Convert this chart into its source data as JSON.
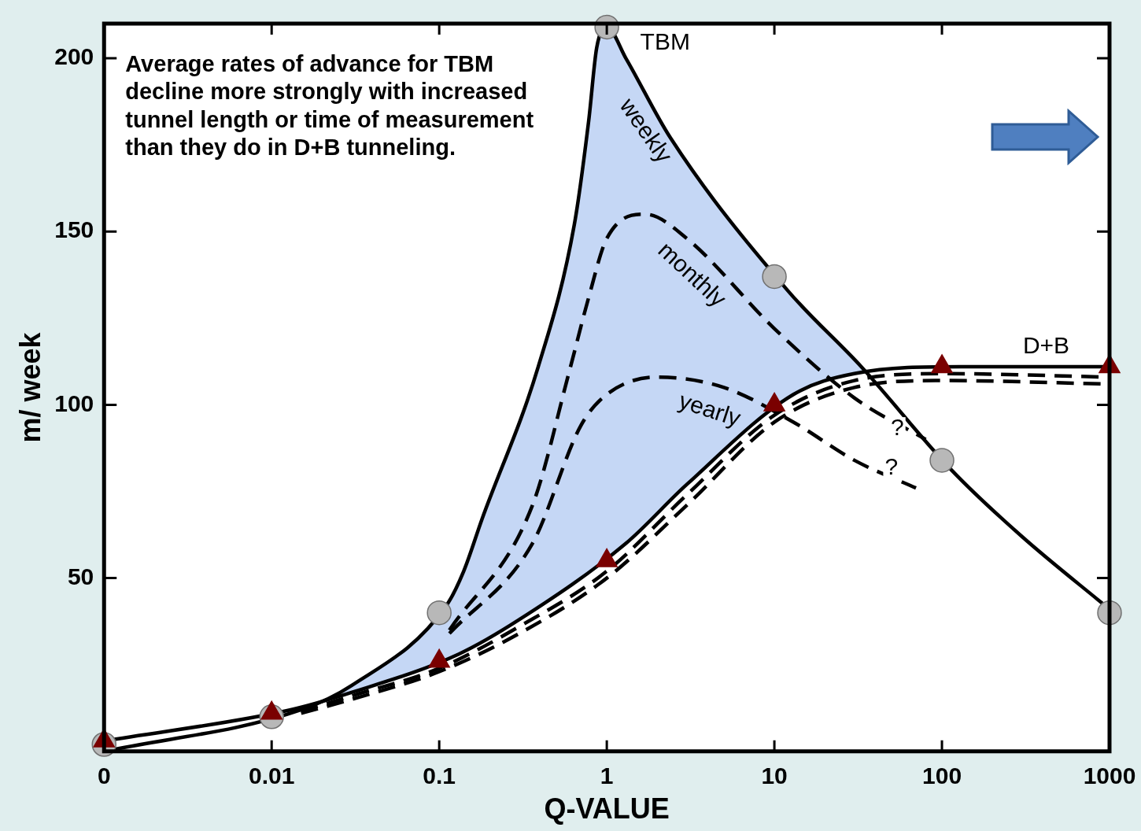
{
  "chart_data": {
    "type": "line",
    "xlabel": "Q-VALUE",
    "ylabel": "m/ week",
    "log": "x",
    "xlim": [
      0.001,
      1000
    ],
    "xticks": [
      {
        "value": 0.001,
        "label": "0"
      },
      0.01,
      0.1,
      1,
      10,
      100,
      1000
    ],
    "ylim": [
      0,
      210
    ],
    "yticks": [
      50,
      100,
      150,
      200
    ],
    "grid": false,
    "legend": false,
    "series": [
      {
        "color": "#000000",
        "line_style": "solid",
        "marker": "none",
        "x": [
          0.001,
          0.015,
          0.03,
          0.11,
          0.14,
          0.18,
          0.39,
          0.64,
          0.78,
          0.87,
          1,
          1.3,
          2.4,
          12,
          33,
          115,
          300,
          1000
        ],
        "values": [
          0,
          12,
          19,
          42,
          52,
          67,
          111,
          152,
          182,
          203,
          209,
          200,
          177,
          133,
          111,
          81,
          62,
          41
        ]
      },
      {
        "color": "#000000",
        "line_style": "dashed",
        "marker": "none",
        "x": [
          0.115,
          0.36,
          0.6,
          0.78,
          1,
          1.7,
          3,
          10,
          30,
          80
        ],
        "values": [
          35,
          71,
          110,
          131,
          148,
          155,
          148,
          122,
          102,
          90
        ]
      },
      {
        "color": "#000000",
        "line_style": "dashed",
        "marker": "none",
        "x": [
          0.115,
          0.36,
          0.7,
          1,
          2,
          5,
          13,
          30,
          70
        ],
        "values": [
          34,
          60,
          94,
          103,
          108,
          105,
          95,
          84,
          76
        ]
      },
      {
        "color": "#000000",
        "line_style": "solid",
        "marker": "none",
        "x": [
          0.001,
          0.013,
          0.03,
          0.13,
          0.3,
          1.3,
          3,
          13,
          30,
          130,
          1000
        ],
        "values": [
          3,
          12,
          17,
          28,
          38,
          60,
          77,
          103,
          109,
          111,
          111
        ]
      },
      {
        "color": "#000000",
        "line_style": "dashed",
        "marker": "none",
        "x": [
          0.015,
          0.03,
          0.1,
          0.3,
          1,
          3,
          10,
          30,
          100,
          1000
        ],
        "values": [
          11.5,
          16,
          24,
          36,
          52,
          74,
          97,
          107,
          109,
          108
        ]
      },
      {
        "color": "#000000",
        "line_style": "dashed",
        "marker": "none",
        "x": [
          0.015,
          0.03,
          0.1,
          0.3,
          1,
          3,
          10,
          30,
          100,
          1000
        ],
        "values": [
          11,
          15,
          23,
          34,
          50,
          71,
          95,
          105,
          107,
          106
        ]
      },
      {
        "type": "scatter",
        "color": "#b8b8b8",
        "marker": "circle",
        "x": [
          0.001,
          0.01,
          0.1,
          1,
          10,
          100,
          1000
        ],
        "values": [
          2,
          10,
          40,
          209,
          137,
          84,
          40
        ]
      },
      {
        "type": "scatter",
        "color": "#7a0000",
        "marker": "triangle",
        "x": [
          0.001,
          0.01,
          0.1,
          1,
          10,
          100,
          1000
        ],
        "values": [
          3,
          11,
          26,
          55,
          100,
          111,
          111
        ]
      }
    ],
    "annotations": [
      "Average rates of advance for TBM\ndecline more strongly with increased\ntunnel length or time of measurement\nthan they do in D+B tunneling.",
      "TBM",
      "D+B",
      "weekly",
      "monthly",
      "yearly",
      "?",
      "?"
    ]
  }
}
